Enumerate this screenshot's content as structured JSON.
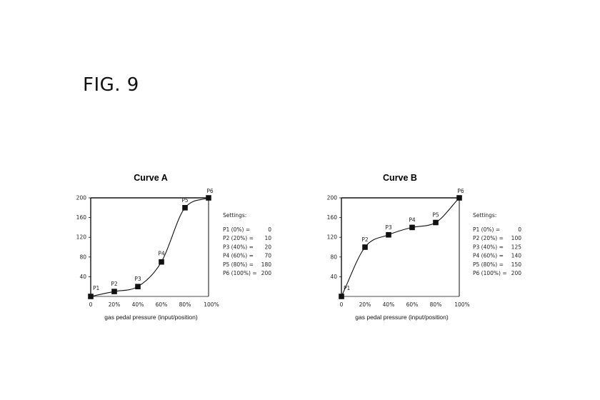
{
  "figure": {
    "label": "FIG. 9"
  },
  "chart_data": [
    {
      "type": "line",
      "title": "Curve A",
      "xlabel": "gas pedal pressure (input/position)",
      "ylabel": "",
      "xlim": [
        0,
        100
      ],
      "ylim": [
        0,
        200
      ],
      "x_ticks": [
        "0",
        "20%",
        "40%",
        "60%",
        "80%",
        "100%"
      ],
      "y_ticks": [
        "40",
        "80",
        "120",
        "160",
        "200"
      ],
      "points": [
        {
          "name": "P1",
          "x": 0,
          "y": 0
        },
        {
          "name": "P2",
          "x": 20,
          "y": 10
        },
        {
          "name": "P3",
          "x": 40,
          "y": 20
        },
        {
          "name": "P4",
          "x": 60,
          "y": 70
        },
        {
          "name": "P5",
          "x": 80,
          "y": 180
        },
        {
          "name": "P6",
          "x": 100,
          "y": 200
        }
      ],
      "settings_title": "Settings:",
      "settings": [
        {
          "label": "P1 (0%) =",
          "value": "0"
        },
        {
          "label": "P2 (20%) =",
          "value": "10"
        },
        {
          "label": "P3 (40%) =",
          "value": "20"
        },
        {
          "label": "P4 (60%) =",
          "value": "70"
        },
        {
          "label": "P5 (80%) =",
          "value": "180"
        },
        {
          "label": "P6 (100%) =",
          "value": "200"
        }
      ]
    },
    {
      "type": "line",
      "title": "Curve B",
      "xlabel": "gas pedal pressure (input/position)",
      "ylabel": "",
      "xlim": [
        0,
        100
      ],
      "ylim": [
        0,
        200
      ],
      "x_ticks": [
        "0",
        "20%",
        "40%",
        "60%",
        "80%",
        "100%"
      ],
      "y_ticks": [
        "40",
        "80",
        "120",
        "160",
        "200"
      ],
      "points": [
        {
          "name": "P1",
          "x": 0,
          "y": 0
        },
        {
          "name": "P2",
          "x": 20,
          "y": 100
        },
        {
          "name": "P3",
          "x": 40,
          "y": 125
        },
        {
          "name": "P4",
          "x": 60,
          "y": 140
        },
        {
          "name": "P5",
          "x": 80,
          "y": 150
        },
        {
          "name": "P6",
          "x": 100,
          "y": 200
        }
      ],
      "settings_title": "Settings:",
      "settings": [
        {
          "label": "P1 (0%) =",
          "value": "0"
        },
        {
          "label": "P2 (20%) =",
          "value": "100"
        },
        {
          "label": "P3 (40%) =",
          "value": "125"
        },
        {
          "label": "P4 (60%) =",
          "value": "140"
        },
        {
          "label": "P5 (80%) =",
          "value": "150"
        },
        {
          "label": "P6 (100%) =",
          "value": "200"
        }
      ]
    }
  ]
}
